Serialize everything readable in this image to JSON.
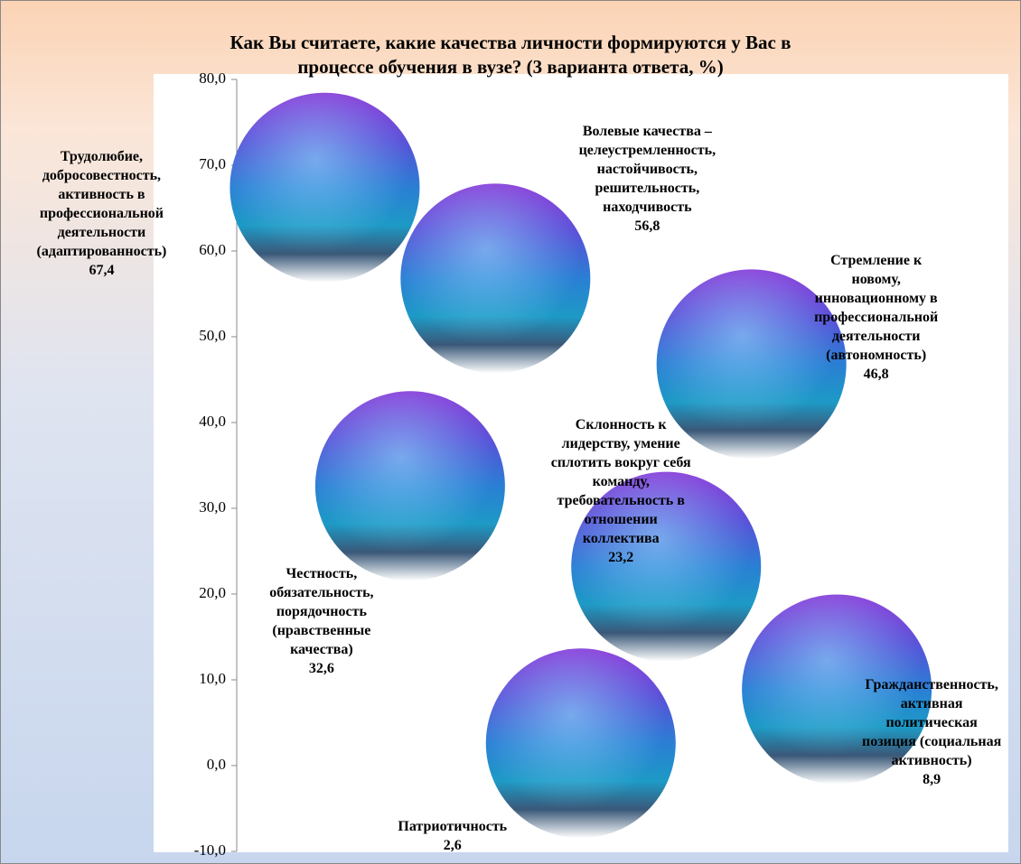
{
  "chart_data": {
    "type": "bubble",
    "title": "Как Вы считаете, какие качества личности формируются у Вас в\nпроцессе обучения в вузе? (3 варианта ответа, %)",
    "categories": [
      "Трудолюбие,\nдобросовестность,\nактивность в\nпрофессиональной\nдеятельности\n(адаптированность)",
      "Честность,\nобязательность,\nпорядочность\n(нравственные\nкачества)",
      "Волевые качества –\nцелеустремленность,\nнастойчивость,\nрешительность,\nнаходчивость",
      "Патриотичность",
      "Склонность к\nлидерству, умение\nсплотить вокруг себя\nкоманду,\nтребовательность в\nотношении\nколлектива",
      "Стремление к\nновому,\nинновационному в\nпрофессиональной\nдеятельности\n(автономность)",
      "Гражданственность,\nактивная\nполитическая\nпозиция (социальная\nактивность)"
    ],
    "x": [
      1,
      2,
      3,
      4,
      5,
      6,
      7
    ],
    "values": [
      67.4,
      32.6,
      56.8,
      2.6,
      23.2,
      46.8,
      8.9
    ],
    "value_labels": [
      "67,4",
      "32,6",
      "56,8",
      "2,6",
      "23,2",
      "46,8",
      "8,9"
    ],
    "xlim": [
      0,
      9
    ],
    "ylim": [
      -10,
      80
    ],
    "yticks": [
      {
        "value": -10,
        "label": "-10,0"
      },
      {
        "value": 0,
        "label": "0,0"
      },
      {
        "value": 10,
        "label": "10,0"
      },
      {
        "value": 20,
        "label": "20,0"
      },
      {
        "value": 30,
        "label": "30,0"
      },
      {
        "value": 40,
        "label": "40,0"
      },
      {
        "value": 50,
        "label": "50,0"
      },
      {
        "value": 60,
        "label": "60,0"
      },
      {
        "value": 70,
        "label": "70,0"
      },
      {
        "value": 80,
        "label": "80,0"
      }
    ]
  }
}
